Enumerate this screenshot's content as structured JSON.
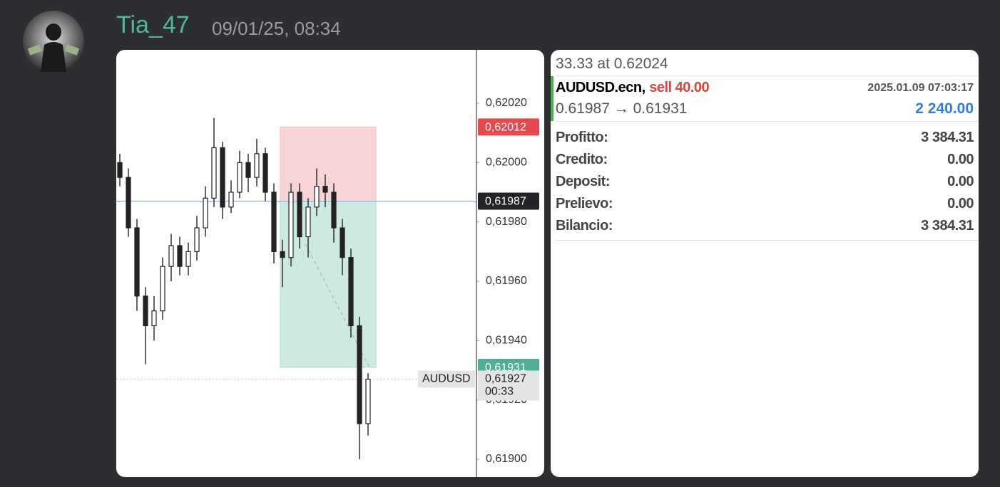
{
  "message": {
    "author": "Tia_47",
    "timestamp": "09/01/25, 08:34"
  },
  "chart_data": {
    "type": "candlestick",
    "open": [
      0.62,
      0.61995,
      0.61978,
      0.61955,
      0.61945,
      0.6195,
      0.61965,
      0.61972,
      0.61965,
      0.6197,
      0.61978,
      0.61988,
      0.62005,
      0.61985,
      0.6199,
      0.62,
      0.61995,
      0.62003,
      0.6199,
      0.6197,
      0.61968,
      0.6199,
      0.61975,
      0.61985,
      0.61992,
      0.6199,
      0.61978,
      0.61968,
      0.61945,
      0.61912
    ],
    "high": [
      0.62003,
      0.61998,
      0.61981,
      0.61958,
      0.61955,
      0.61968,
      0.61976,
      0.61975,
      0.61973,
      0.61982,
      0.61992,
      0.62015,
      0.62007,
      0.61994,
      0.62004,
      0.62003,
      0.62008,
      0.62005,
      0.61993,
      0.61974,
      0.61993,
      0.61993,
      0.61988,
      0.61998,
      0.61996,
      0.61993,
      0.61981,
      0.61971,
      0.61948,
      0.61929
    ],
    "low": [
      0.61992,
      0.61975,
      0.6195,
      0.61932,
      0.6194,
      0.61947,
      0.6196,
      0.61962,
      0.61962,
      0.61967,
      0.61975,
      0.61985,
      0.61981,
      0.61983,
      0.61988,
      0.6199,
      0.61992,
      0.61987,
      0.61966,
      0.61958,
      0.61965,
      0.61971,
      0.61968,
      0.61982,
      0.61985,
      0.61973,
      0.61962,
      0.61941,
      0.619,
      0.61908
    ],
    "close": [
      0.61995,
      0.61978,
      0.61955,
      0.61945,
      0.6195,
      0.61965,
      0.61972,
      0.61965,
      0.6197,
      0.61978,
      0.61988,
      0.62005,
      0.61985,
      0.6199,
      0.62,
      0.61995,
      0.62003,
      0.6199,
      0.6197,
      0.61968,
      0.6199,
      0.61975,
      0.61985,
      0.61992,
      0.6199,
      0.61978,
      0.61968,
      0.61945,
      0.61912,
      0.61927
    ],
    "ylim": [
      0.61894,
      0.62038
    ],
    "yticks": [
      {
        "value": 0.6202,
        "label": "0,62020"
      },
      {
        "value": 0.62,
        "label": "0,62000"
      },
      {
        "value": 0.6198,
        "label": "0,61980"
      },
      {
        "value": 0.6196,
        "label": "0,61960"
      },
      {
        "value": 0.6194,
        "label": "0,61940"
      },
      {
        "value": 0.6192,
        "label": "0,61920"
      },
      {
        "value": 0.619,
        "label": "0,61900"
      }
    ],
    "markers": [
      {
        "value": 0.62012,
        "label": "0,62012",
        "color": "#e5484d"
      },
      {
        "value": 0.61987,
        "label": "0,61987",
        "color": "#222326"
      },
      {
        "value": 0.61931,
        "label": "0,61931",
        "color": "#4fae95"
      }
    ],
    "last_price": {
      "value": 0.61927,
      "label": "0,61927",
      "symbol": "AUDUSD",
      "countdown": "00:33"
    }
  },
  "trade": {
    "summary": "33.33 at 0.62024",
    "symbol": "AUDUSD.ecn,",
    "side": "sell 40.00",
    "time": "2025.01.09 07:03:17",
    "prices": "0.61987 → 0.61931",
    "profit": "2 240.00",
    "rows": [
      [
        "Profitto:",
        "3 384.31"
      ],
      [
        "Credito:",
        "0.00"
      ],
      [
        "Deposit:",
        "0.00"
      ],
      [
        "Prelievo:",
        "0.00"
      ],
      [
        "Bilancio:",
        "3 384.31"
      ]
    ]
  }
}
